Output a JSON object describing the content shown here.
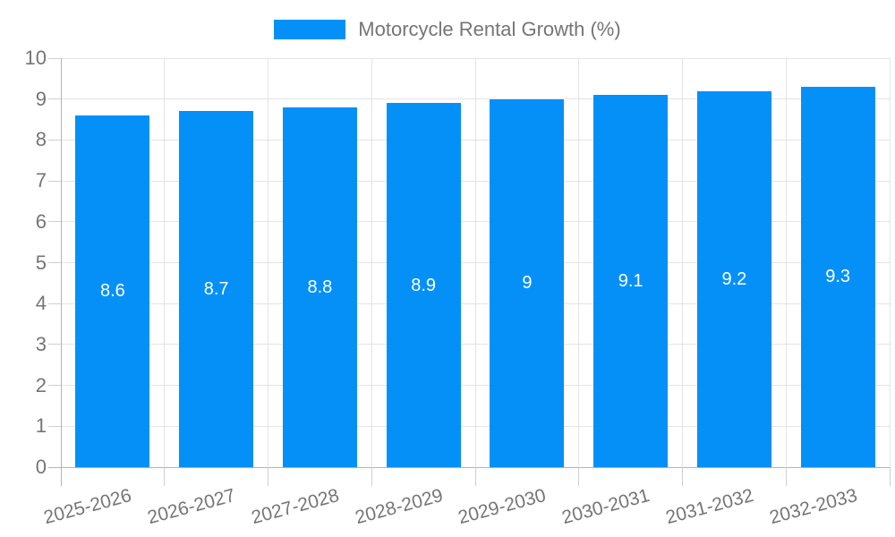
{
  "legend": {
    "label": "Motorcycle Rental Growth (%)"
  },
  "chart_data": {
    "type": "bar",
    "title": "Motorcycle Rental Growth (%)",
    "categories": [
      "2025-2026",
      "2026-2027",
      "2027-2028",
      "2028-2029",
      "2029-2030",
      "2030-2031",
      "2031-2032",
      "2032-2033"
    ],
    "values": [
      8.6,
      8.7,
      8.8,
      8.9,
      9,
      9.1,
      9.2,
      9.3
    ],
    "bar_labels": [
      "8.6",
      "8.7",
      "8.8",
      "8.9",
      "9",
      "9.1",
      "9.2",
      "9.3"
    ],
    "xlabel": "",
    "ylabel": "",
    "ylim": [
      0,
      10
    ],
    "yticks": [
      0,
      1,
      2,
      3,
      4,
      5,
      6,
      7,
      8,
      9,
      10
    ],
    "grid": true,
    "legend_position": "top",
    "x_label_rotation_deg": -15
  },
  "colors": {
    "bar": "#0590F8",
    "text": "#757575",
    "grid": "#E4E4E4",
    "axis": "#B3B3B3",
    "minor_tick": "#CFCFCF",
    "bar_value_text": "#FFFFFF",
    "background": "#FFFFFF"
  }
}
